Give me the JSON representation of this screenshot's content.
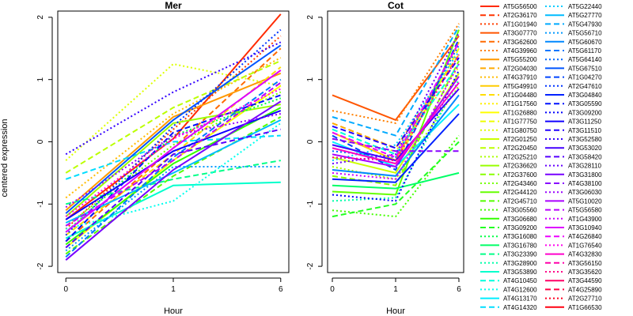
{
  "chart_data": {
    "type": "line",
    "ylabel": "centered expression",
    "panels": [
      {
        "title": "Mer",
        "xlabel": "Hour",
        "x_ticks": [
          "0",
          "1",
          "6"
        ],
        "y_ticks": [
          "-2",
          "-1",
          "0",
          "1",
          "2"
        ],
        "ylim": [
          -2.1,
          2.1
        ],
        "series": [
          {
            "values": [
              -1.25,
              0.05,
              2.05
            ]
          },
          {
            "values": [
              -1.4,
              0.2,
              1.7
            ]
          },
          {
            "values": [
              -1.6,
              -0.1,
              1.5
            ]
          },
          {
            "values": [
              -1.1,
              0.4,
              1.1
            ]
          },
          {
            "values": [
              -0.9,
              0.45,
              1.35
            ]
          },
          {
            "values": [
              -1.5,
              -0.2,
              1.2
            ]
          },
          {
            "values": [
              -1.7,
              -0.3,
              0.9
            ]
          },
          {
            "values": [
              -0.3,
              1.25,
              0.9
            ]
          },
          {
            "values": [
              -0.5,
              0.55,
              1.3
            ]
          },
          {
            "values": [
              -1.2,
              0.3,
              0.6
            ]
          },
          {
            "values": [
              -1.35,
              -0.05,
              0.8
            ]
          },
          {
            "values": [
              -1.8,
              -0.55,
              0.4
            ]
          },
          {
            "values": [
              -1.65,
              -0.35,
              0.55
            ]
          },
          {
            "values": [
              -1.45,
              0.1,
              0.7
            ]
          },
          {
            "values": [
              -1.0,
              -0.6,
              -0.3
            ]
          },
          {
            "values": [
              -1.55,
              -0.7,
              -0.65
            ]
          },
          {
            "values": [
              -1.4,
              -0.95,
              0.3
            ]
          },
          {
            "values": [
              -0.6,
              0.0,
              0.1
            ]
          },
          {
            "values": [
              -1.3,
              -0.5,
              0.35
            ]
          },
          {
            "values": [
              -1.75,
              -0.4,
              -0.4
            ]
          },
          {
            "values": [
              -1.85,
              -0.25,
              1.0
            ]
          },
          {
            "values": [
              -1.15,
              0.35,
              1.55
            ]
          },
          {
            "values": [
              -1.5,
              0.25,
              1.8
            ]
          },
          {
            "values": [
              -1.6,
              0.15,
              0.75
            ]
          },
          {
            "values": [
              -1.25,
              -0.15,
              0.5
            ]
          },
          {
            "values": [
              -0.2,
              0.8,
              1.6
            ]
          },
          {
            "values": [
              -1.7,
              -0.2,
              0.2
            ]
          },
          {
            "values": [
              -1.9,
              -0.45,
              0.65
            ]
          },
          {
            "values": [
              -1.05,
              0.1,
              0.45
            ]
          },
          {
            "values": [
              -1.35,
              -0.3,
              0.95
            ]
          },
          {
            "values": [
              -1.45,
              -0.1,
              1.15
            ]
          },
          {
            "values": [
              -1.2,
              0.05,
              0.85
            ]
          }
        ]
      },
      {
        "title": "Cot",
        "xlabel": "Hour",
        "x_ticks": [
          "0",
          "1",
          "6"
        ],
        "y_ticks": [
          "-2",
          "-1",
          "0",
          "1",
          "2"
        ],
        "ylim": [
          -2.1,
          2.1
        ],
        "series": [
          {
            "values": [
              0.75,
              0.35,
              1.7
            ]
          },
          {
            "values": [
              0.5,
              0.3,
              1.9
            ]
          },
          {
            "values": [
              0.3,
              -0.1,
              1.4
            ]
          },
          {
            "values": [
              0.15,
              -0.3,
              1.6
            ]
          },
          {
            "values": [
              0.05,
              -0.15,
              1.2
            ]
          },
          {
            "values": [
              -0.1,
              -0.35,
              1.5
            ]
          },
          {
            "values": [
              -0.25,
              -0.5,
              1.1
            ]
          },
          {
            "values": [
              -0.4,
              -0.6,
              0.9
            ]
          },
          {
            "values": [
              -0.55,
              -0.7,
              1.3
            ]
          },
          {
            "values": [
              -0.8,
              -0.85,
              1.8
            ]
          },
          {
            "values": [
              -1.1,
              -1.2,
              0.1
            ]
          },
          {
            "values": [
              -1.2,
              -1.0,
              0.0
            ]
          },
          {
            "values": [
              -0.7,
              -0.75,
              -0.5
            ]
          },
          {
            "values": [
              -0.95,
              -0.9,
              1.0
            ]
          },
          {
            "values": [
              0.2,
              -0.2,
              1.25
            ]
          },
          {
            "values": [
              0.0,
              -0.4,
              0.6
            ]
          },
          {
            "values": [
              -0.3,
              -0.05,
              1.45
            ]
          },
          {
            "values": [
              0.4,
              0.1,
              1.85
            ]
          },
          {
            "values": [
              -0.45,
              -0.55,
              0.75
            ]
          },
          {
            "values": [
              -0.15,
              -0.25,
              1.55
            ]
          },
          {
            "values": [
              0.1,
              -0.45,
              1.65
            ]
          },
          {
            "values": [
              -0.6,
              -0.65,
              0.45
            ]
          },
          {
            "values": [
              -0.85,
              -0.95,
              1.15
            ]
          },
          {
            "values": [
              0.25,
              -0.1,
              1.35
            ]
          },
          {
            "values": [
              -0.05,
              -0.3,
              0.85
            ]
          },
          {
            "values": [
              -0.35,
              -0.2,
              1.75
            ]
          },
          {
            "values": [
              0.05,
              -0.15,
              -0.15
            ]
          },
          {
            "values": [
              -0.2,
              -0.4,
              1.05
            ]
          },
          {
            "values": [
              -0.5,
              -0.6,
              1.25
            ]
          },
          {
            "values": [
              0.15,
              -0.25,
              1.6
            ]
          },
          {
            "values": [
              -0.1,
              -0.35,
              0.95
            ]
          },
          {
            "values": [
              -0.25,
              -0.3,
              1.4
            ]
          }
        ]
      }
    ],
    "legend": {
      "placement": "right",
      "columns": [
        [
          {
            "label": "AT5G56500",
            "color": "#ff2a00",
            "dash": "solid"
          },
          {
            "label": "AT2G36170",
            "color": "#ff3300",
            "dash": "dashed"
          },
          {
            "label": "AT1G01940",
            "color": "#ff3d00",
            "dash": "dotted"
          },
          {
            "label": "AT3G07770",
            "color": "#ff5500",
            "dash": "solid"
          },
          {
            "label": "AT3G62600",
            "color": "#ff6a00",
            "dash": "dashed"
          },
          {
            "label": "AT4G39960",
            "color": "#ff7f00",
            "dash": "dotted"
          },
          {
            "label": "AT5G55200",
            "color": "#ff9900",
            "dash": "solid"
          },
          {
            "label": "AT2G04030",
            "color": "#ffaa00",
            "dash": "dashed"
          },
          {
            "label": "AT4G37910",
            "color": "#ffbb00",
            "dash": "dotted"
          },
          {
            "label": "AT5G49910",
            "color": "#ffcc00",
            "dash": "solid"
          },
          {
            "label": "AT1G04480",
            "color": "#ffdd00",
            "dash": "dashed"
          },
          {
            "label": "AT1G17560",
            "color": "#ffee00",
            "dash": "dotted"
          },
          {
            "label": "AT1G26880",
            "color": "#ffff00",
            "dash": "solid"
          },
          {
            "label": "AT1G77750",
            "color": "#eeff00",
            "dash": "dashed"
          },
          {
            "label": "AT1G80750",
            "color": "#ddff00",
            "dash": "dotted"
          },
          {
            "label": "AT2G01250",
            "color": "#ccff00",
            "dash": "solid"
          },
          {
            "label": "AT2G20450",
            "color": "#bbff00",
            "dash": "dashed"
          },
          {
            "label": "AT2G25210",
            "color": "#aaff00",
            "dash": "dotted"
          },
          {
            "label": "AT2G36620",
            "color": "#99ff00",
            "dash": "solid"
          },
          {
            "label": "AT2G37600",
            "color": "#88ff00",
            "dash": "dashed"
          },
          {
            "label": "AT2G43460",
            "color": "#77ff00",
            "dash": "dotted"
          },
          {
            "label": "AT2G44120",
            "color": "#66ff00",
            "dash": "solid"
          },
          {
            "label": "AT2G45710",
            "color": "#55ff00",
            "dash": "dashed"
          },
          {
            "label": "AT3G05560",
            "color": "#44ff00",
            "dash": "dotted"
          },
          {
            "label": "AT3G06680",
            "color": "#33ff00",
            "dash": "solid"
          },
          {
            "label": "AT3G09200",
            "color": "#22ff22",
            "dash": "dashed"
          },
          {
            "label": "AT3G16080",
            "color": "#00ff44",
            "dash": "dotted"
          },
          {
            "label": "AT3G16780",
            "color": "#00ff66",
            "dash": "solid"
          },
          {
            "label": "AT3G23390",
            "color": "#00ff88",
            "dash": "dashed"
          },
          {
            "label": "AT3G28900",
            "color": "#00ffaa",
            "dash": "dotted"
          },
          {
            "label": "AT3G53890",
            "color": "#00ffcc",
            "dash": "solid"
          },
          {
            "label": "AT4G10450",
            "color": "#00ffdd",
            "dash": "dashed"
          },
          {
            "label": "AT4G12600",
            "color": "#00ffee",
            "dash": "dotted"
          },
          {
            "label": "AT4G13170",
            "color": "#00eeff",
            "dash": "solid"
          },
          {
            "label": "AT4G14320",
            "color": "#00ddff",
            "dash": "dashed"
          }
        ],
        [
          {
            "label": "AT5G22440",
            "color": "#00ccff",
            "dash": "dotted"
          },
          {
            "label": "AT5G27770",
            "color": "#00bbff",
            "dash": "solid"
          },
          {
            "label": "AT5G47930",
            "color": "#00aaff",
            "dash": "dashed"
          },
          {
            "label": "AT5G56710",
            "color": "#0099ff",
            "dash": "dotted"
          },
          {
            "label": "AT5G60670",
            "color": "#0088ff",
            "dash": "solid"
          },
          {
            "label": "AT5G61170",
            "color": "#0077ff",
            "dash": "dashed"
          },
          {
            "label": "AT5G64140",
            "color": "#0066ff",
            "dash": "dotted"
          },
          {
            "label": "AT5G67510",
            "color": "#0055ff",
            "dash": "solid"
          },
          {
            "label": "AT1G04270",
            "color": "#0044ff",
            "dash": "dashed"
          },
          {
            "label": "AT2G47610",
            "color": "#0033ff",
            "dash": "dotted"
          },
          {
            "label": "AT3G04840",
            "color": "#0022ff",
            "dash": "solid"
          },
          {
            "label": "AT3G05590",
            "color": "#0011ff",
            "dash": "dashed"
          },
          {
            "label": "AT3G09200",
            "color": "#0000ff",
            "dash": "dotted"
          },
          {
            "label": "AT3G11250",
            "color": "#1100ff",
            "dash": "solid"
          },
          {
            "label": "AT3G11510",
            "color": "#2200ff",
            "dash": "dashed"
          },
          {
            "label": "AT3G52580",
            "color": "#3300ff",
            "dash": "dotted"
          },
          {
            "label": "AT3G53020",
            "color": "#4400ff",
            "dash": "solid"
          },
          {
            "label": "AT3G58420",
            "color": "#5500ff",
            "dash": "dashed"
          },
          {
            "label": "AT3G28110",
            "color": "#6600ff",
            "dash": "dotted"
          },
          {
            "label": "AT3G31800",
            "color": "#7700ff",
            "dash": "solid"
          },
          {
            "label": "AT4G38100",
            "color": "#8800ff",
            "dash": "dashed"
          },
          {
            "label": "AT3G06030",
            "color": "#9900ff",
            "dash": "dotted"
          },
          {
            "label": "AT5G10020",
            "color": "#aa00ff",
            "dash": "solid"
          },
          {
            "label": "AT5G56580",
            "color": "#bb00ff",
            "dash": "dashed"
          },
          {
            "label": "AT1G43900",
            "color": "#cc00ff",
            "dash": "dotted"
          },
          {
            "label": "AT3G10940",
            "color": "#dd00ff",
            "dash": "solid"
          },
          {
            "label": "AT4G26840",
            "color": "#ee00ff",
            "dash": "dashed"
          },
          {
            "label": "AT1G76540",
            "color": "#ff00ee",
            "dash": "dotted"
          },
          {
            "label": "AT4G32830",
            "color": "#ff00cc",
            "dash": "solid"
          },
          {
            "label": "AT3G56150",
            "color": "#ff00aa",
            "dash": "dashed"
          },
          {
            "label": "AT3G35620",
            "color": "#ff0088",
            "dash": "dotted"
          },
          {
            "label": "AT3G44590",
            "color": "#ff0066",
            "dash": "solid"
          },
          {
            "label": "AT4G25890",
            "color": "#ff0044",
            "dash": "dashed"
          },
          {
            "label": "AT2G27710",
            "color": "#ff0022",
            "dash": "dotted"
          },
          {
            "label": "AT1G66530",
            "color": "#ff0011",
            "dash": "solid"
          }
        ]
      ]
    }
  }
}
